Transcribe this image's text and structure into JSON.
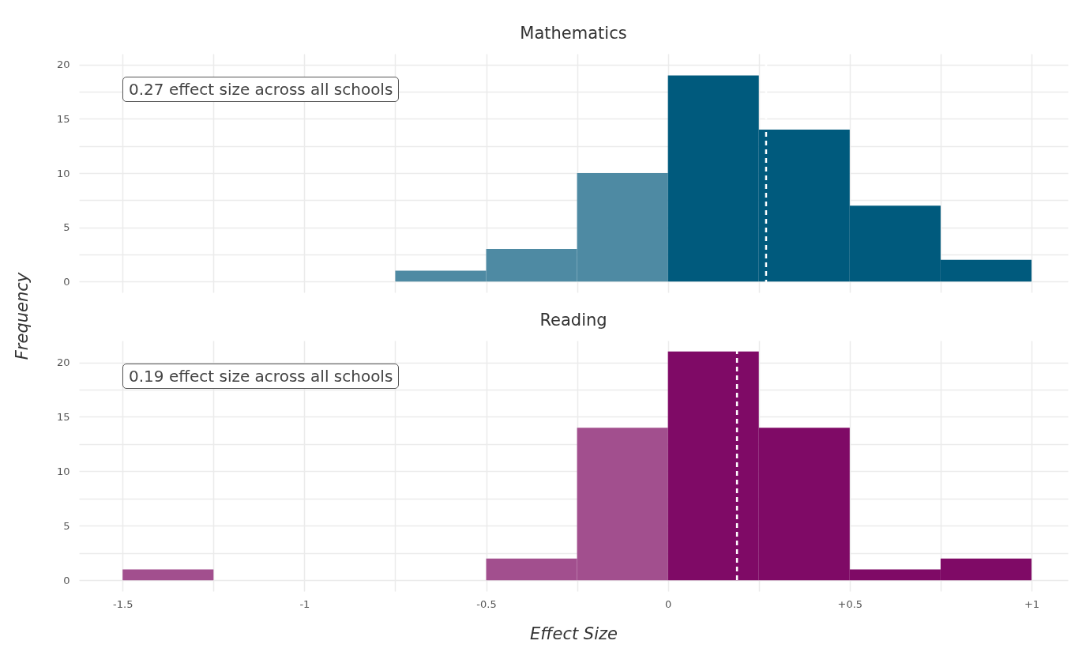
{
  "chart_data": [
    {
      "type": "histogram",
      "title": "Mathematics",
      "ylabel": "Frequency",
      "bins": [
        -1.5,
        -1.25,
        -1,
        -0.75,
        -0.5,
        -0.25,
        0,
        0.25,
        0.5,
        0.75,
        1
      ],
      "values": [
        0,
        0,
        0,
        1,
        3,
        10,
        19,
        14,
        7,
        2
      ],
      "colors": [
        "#4e8aa3",
        "#4e8aa3",
        "#4e8aa3",
        "#4e8aa3",
        "#4e8aa3",
        "#4e8aa3",
        "#005a7d",
        "#005a7d",
        "#005a7d",
        "#005a7d"
      ],
      "xlim": [
        -1.62,
        1.1
      ],
      "ylim": [
        -1,
        21
      ],
      "xticks": [
        {
          "value": -1.5,
          "label": null
        },
        {
          "value": -1.25,
          "label": null
        },
        {
          "value": -1,
          "label": null
        },
        {
          "value": -0.75,
          "label": null
        },
        {
          "value": -0.5,
          "label": null
        },
        {
          "value": -0.25,
          "label": null
        },
        {
          "value": 0,
          "label": null
        },
        {
          "value": 0.25,
          "label": null
        },
        {
          "value": 0.5,
          "label": null
        },
        {
          "value": 0.75,
          "label": null
        },
        {
          "value": 1,
          "label": null
        }
      ],
      "yticks": [
        0,
        {
          "value": 2.5,
          "label": null
        },
        5,
        {
          "value": 7.5,
          "label": null
        },
        10,
        {
          "value": 12.5,
          "label": null
        },
        15,
        {
          "value": 17.5,
          "label": null
        },
        20
      ],
      "tick_labels": "y",
      "grid": true,
      "ref_lines": [
        {
          "axis": "x",
          "value": 0.27,
          "color": "#ffffff",
          "line_style": "dashed"
        }
      ],
      "annotations": [
        "0.27 effect size across all schools"
      ]
    },
    {
      "type": "histogram",
      "title": "Reading",
      "xlabel": "Effect Size",
      "bins": [
        -1.5,
        -1.25,
        -1,
        -0.75,
        -0.5,
        -0.25,
        0,
        0.25,
        0.5,
        0.75,
        1
      ],
      "values": [
        1,
        0,
        0,
        0,
        2,
        14,
        21,
        14,
        1,
        2
      ],
      "colors": [
        "#a24f8e",
        "#a24f8e",
        "#a24f8e",
        "#a24f8e",
        "#a24f8e",
        "#a24f8e",
        "#7f0a66",
        "#7f0a66",
        "#7f0a66",
        "#7f0a66"
      ],
      "xlim": [
        -1.62,
        1.1
      ],
      "ylim": [
        -1,
        22
      ],
      "xticks": [
        -1.5,
        {
          "value": -1.25,
          "label": null
        },
        -1,
        {
          "value": -0.75,
          "label": null
        },
        -0.5,
        {
          "value": -0.25,
          "label": null
        },
        0,
        {
          "value": 0.25,
          "label": null
        },
        {
          "value": 0.5,
          "label": "+0.5"
        },
        {
          "value": 0.75,
          "label": null
        },
        {
          "value": 1,
          "label": "+1"
        }
      ],
      "yticks": [
        0,
        {
          "value": 2.5,
          "label": null
        },
        5,
        {
          "value": 7.5,
          "label": null
        },
        10,
        {
          "value": 12.5,
          "label": null
        },
        15,
        {
          "value": 17.5,
          "label": null
        },
        20
      ],
      "grid": true,
      "ref_lines": [
        {
          "axis": "x",
          "value": 0.19,
          "color": "#ffffff",
          "line_style": "dashed"
        }
      ],
      "annotations": [
        "0.19 effect size across all schools"
      ]
    }
  ]
}
